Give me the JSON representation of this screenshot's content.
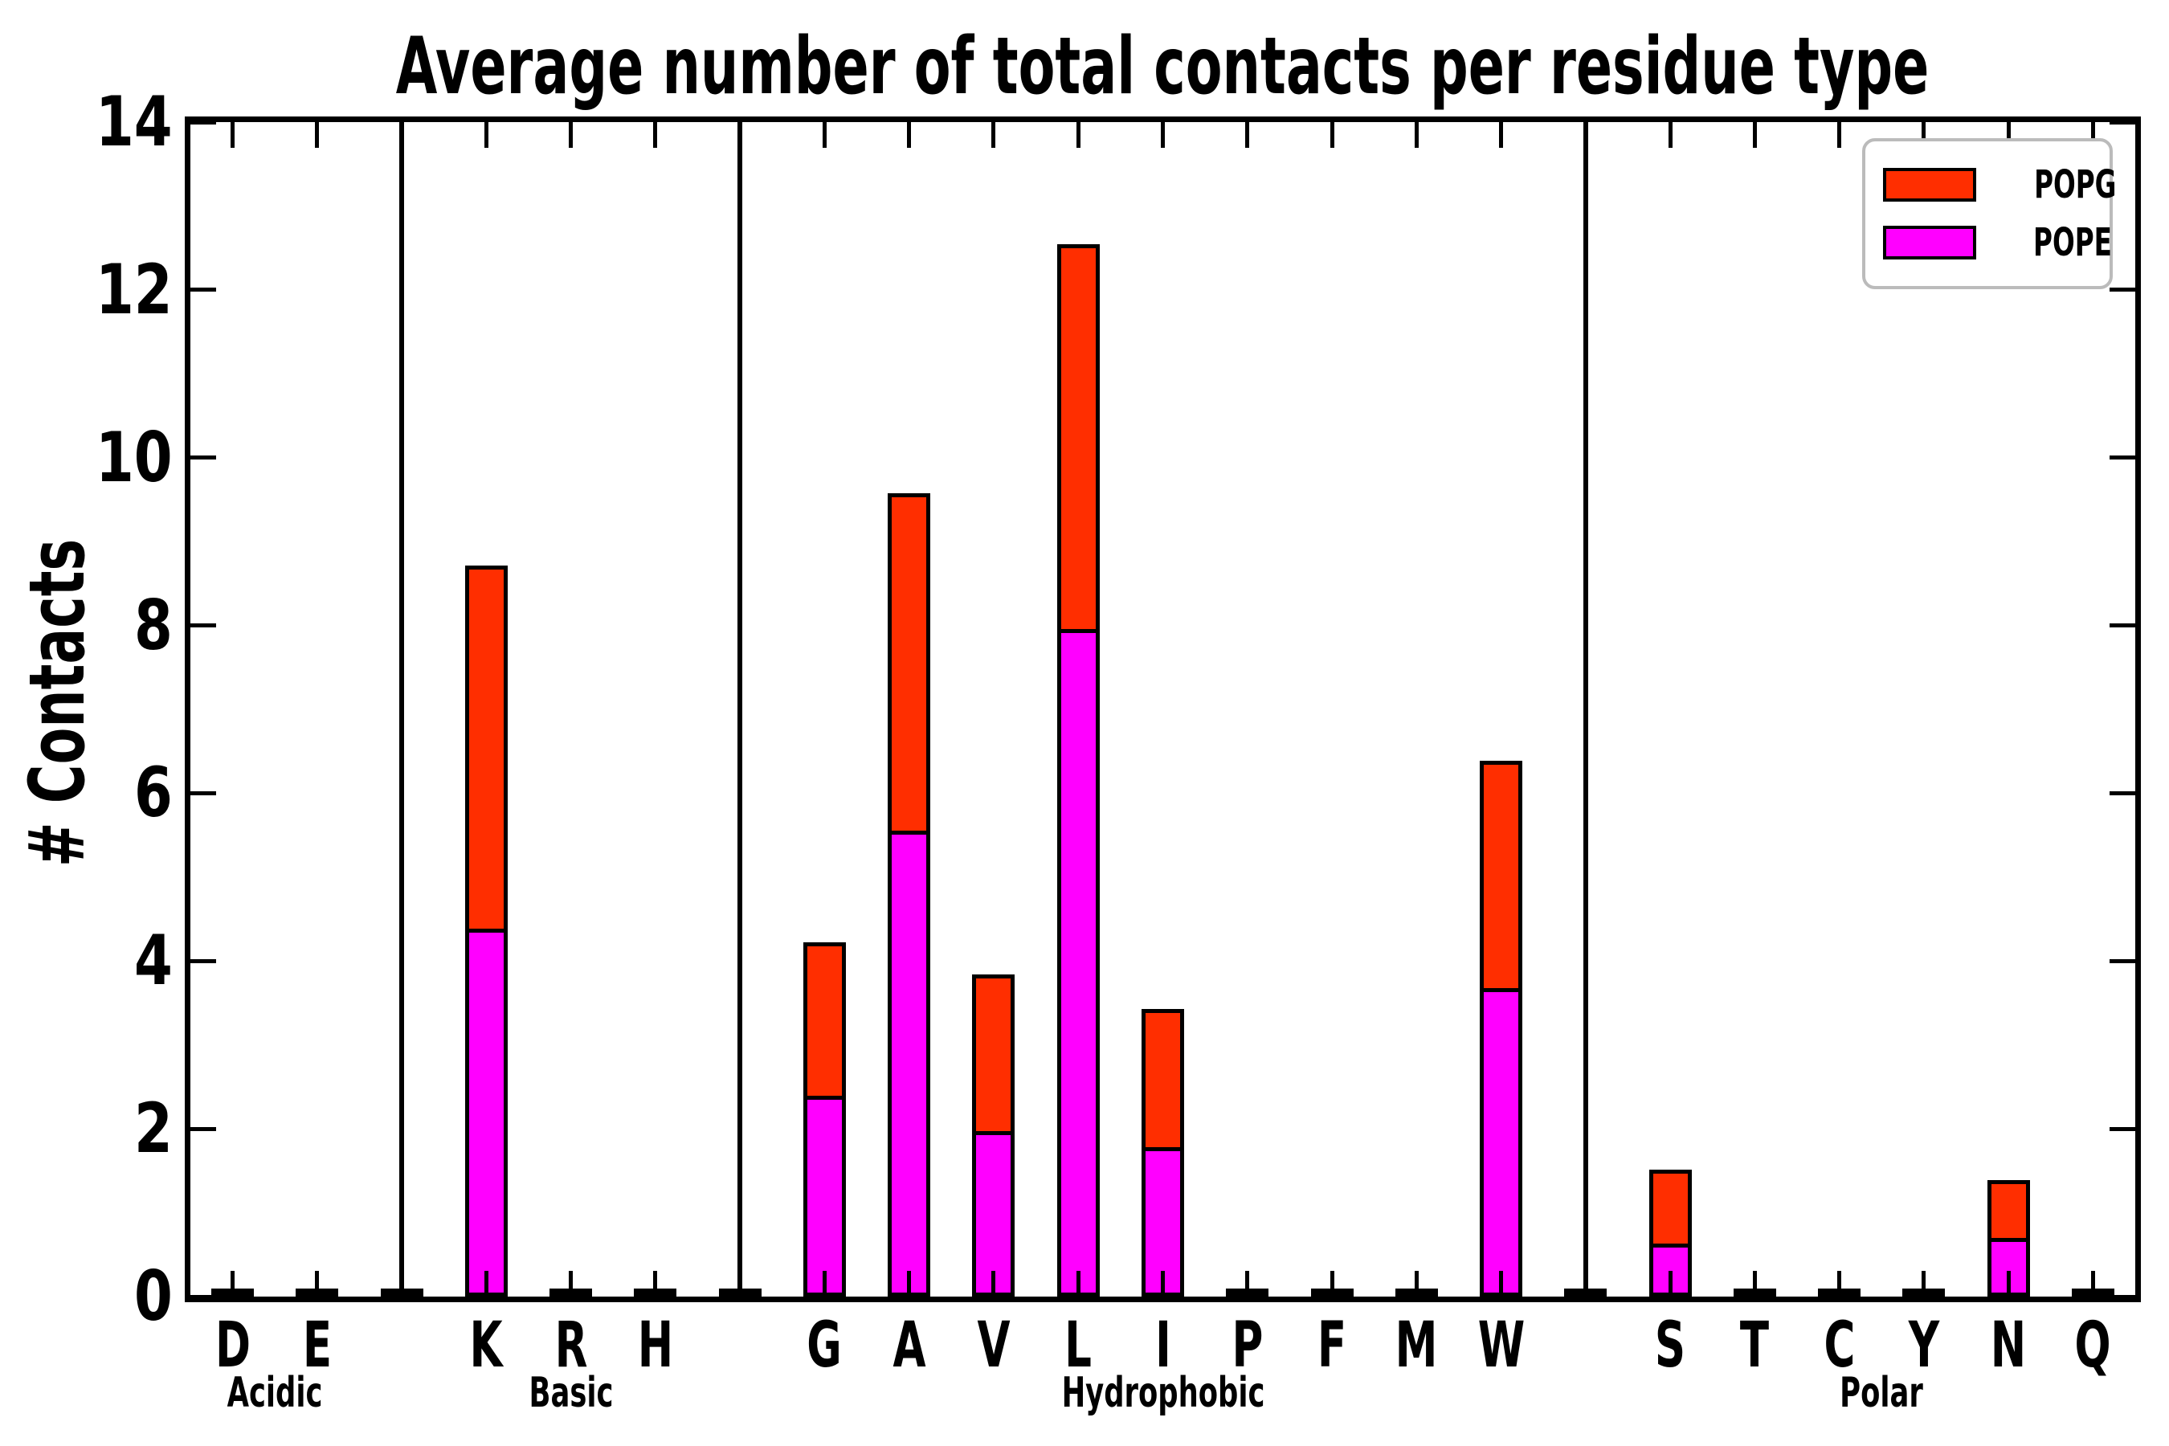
{
  "title": "Average number of total contacts per residue type",
  "ylabel": "# Contacts",
  "colors": {
    "popg": "#FF2E00",
    "pope": "#FF00FF",
    "axis": "#000000",
    "legend_border": "#BBBBBB",
    "background": "#FFFFFF"
  },
  "legend": {
    "entries": [
      {
        "label": "POPG",
        "color": "#FF2E00"
      },
      {
        "label": "POPE",
        "color": "#FF00FF"
      }
    ],
    "position": "upper right"
  },
  "chart_data": {
    "type": "bar",
    "stacked": true,
    "title": "Average number of total contacts per residue type",
    "xlabel": "",
    "ylabel": "# Contacts",
    "ylim": [
      0,
      14
    ],
    "yticks": [
      0,
      2,
      4,
      6,
      8,
      10,
      12,
      14
    ],
    "grid": false,
    "legend_position": "upper right",
    "categories": [
      "D",
      "E",
      "K",
      "R",
      "H",
      "G",
      "A",
      "V",
      "L",
      "I",
      "P",
      "F",
      "M",
      "W",
      "S",
      "T",
      "C",
      "Y",
      "N",
      "Q"
    ],
    "groups": [
      {
        "label": "Acidic",
        "categories": [
          "D",
          "E"
        ]
      },
      {
        "label": "Basic",
        "categories": [
          "K",
          "R",
          "H"
        ]
      },
      {
        "label": "Hydrophobic",
        "categories": [
          "G",
          "A",
          "V",
          "L",
          "I",
          "P",
          "F",
          "M",
          "W"
        ]
      },
      {
        "label": "Polar",
        "categories": [
          "S",
          "T",
          "C",
          "Y",
          "N",
          "Q"
        ]
      }
    ],
    "series": [
      {
        "name": "POPE",
        "color": "#FF00FF",
        "values": [
          0.02,
          0.02,
          4.34,
          0.02,
          0.02,
          2.35,
          5.51,
          1.92,
          7.91,
          1.73,
          0.02,
          0.02,
          0.02,
          3.63,
          0.58,
          0.02,
          0.02,
          0.02,
          0.65,
          0.02
        ]
      },
      {
        "name": "POPG",
        "color": "#FF2E00",
        "values": [
          0.02,
          0.02,
          4.37,
          0.02,
          0.02,
          1.87,
          4.07,
          1.92,
          4.63,
          1.7,
          0.02,
          0.02,
          0.02,
          2.76,
          0.93,
          0.02,
          0.02,
          0.02,
          0.74,
          0.02
        ]
      }
    ],
    "totals": [
      0.04,
      0.04,
      8.71,
      0.04,
      0.04,
      4.22,
      9.58,
      3.84,
      12.54,
      3.43,
      0.04,
      0.04,
      0.04,
      6.39,
      1.51,
      0.04,
      0.04,
      0.04,
      1.39,
      0.04
    ]
  }
}
